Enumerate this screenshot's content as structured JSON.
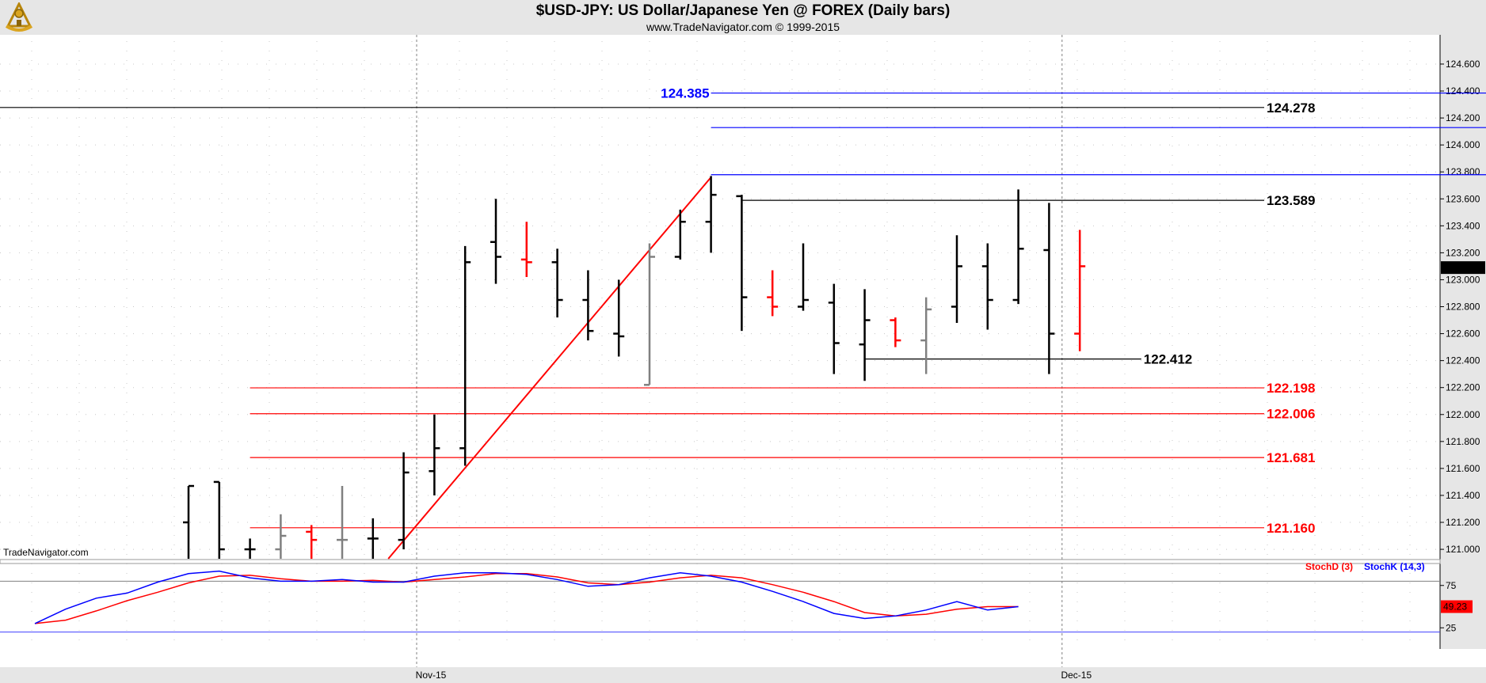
{
  "chart_data": {
    "type": "ohlc",
    "title": "$USD-JPY:  US Dollar/Japanese Yen @ FOREX  (Daily bars)",
    "subtitle": "www.TradeNavigator.com © 1999-2015",
    "watermark": "TradeNavigator.com",
    "price_axis": {
      "ylim": [
        120.93,
        124.77
      ],
      "ticks": [
        "124.600",
        "124.400",
        "124.200",
        "124.000",
        "123.800",
        "123.600",
        "123.400",
        "123.200",
        "123.000",
        "122.800",
        "122.600",
        "122.400",
        "122.200",
        "122.000",
        "121.800",
        "121.600",
        "121.400",
        "121.200",
        "121.000"
      ],
      "tick_values": [
        124.6,
        124.4,
        124.2,
        124.0,
        123.8,
        123.6,
        123.4,
        123.2,
        123.0,
        122.8,
        122.6,
        122.4,
        122.2,
        122.0,
        121.8,
        121.6,
        121.4,
        121.2,
        121.0
      ],
      "last_price_label": "123.090",
      "last_price_value": 123.09
    },
    "date_axis": {
      "labels": [
        "Nov-15",
        "Dec-15"
      ],
      "label_bar_index": [
        8,
        29
      ]
    },
    "bars": [
      {
        "o": 121.2,
        "h": 121.47,
        "l": 120.9,
        "c": 121.47,
        "color": "black"
      },
      {
        "o": 121.5,
        "h": 121.5,
        "l": 120.9,
        "c": 121.0,
        "color": "black"
      },
      {
        "o": 121.0,
        "h": 121.08,
        "l": 120.9,
        "c": 121.0,
        "color": "black"
      },
      {
        "o": 121.0,
        "h": 121.26,
        "l": 120.9,
        "c": 121.1,
        "color": "gray"
      },
      {
        "o": 121.13,
        "h": 121.18,
        "l": 120.9,
        "c": 121.07,
        "color": "red"
      },
      {
        "o": 121.07,
        "h": 121.47,
        "l": 120.9,
        "c": 121.07,
        "color": "gray"
      },
      {
        "o": 121.08,
        "h": 121.23,
        "l": 120.9,
        "c": 121.08,
        "color": "black"
      },
      {
        "o": 121.07,
        "h": 121.72,
        "l": 121.0,
        "c": 121.57,
        "color": "black"
      },
      {
        "o": 121.58,
        "h": 122.0,
        "l": 121.4,
        "c": 121.75,
        "color": "black"
      },
      {
        "o": 121.75,
        "h": 123.25,
        "l": 121.62,
        "c": 123.13,
        "color": "black"
      },
      {
        "o": 123.28,
        "h": 123.6,
        "l": 122.97,
        "c": 123.17,
        "color": "black"
      },
      {
        "o": 123.15,
        "h": 123.43,
        "l": 123.02,
        "c": 123.13,
        "color": "red"
      },
      {
        "o": 123.13,
        "h": 123.23,
        "l": 122.72,
        "c": 122.85,
        "color": "black"
      },
      {
        "o": 122.85,
        "h": 123.07,
        "l": 122.55,
        "c": 122.62,
        "color": "black"
      },
      {
        "o": 122.6,
        "h": 123.0,
        "l": 122.43,
        "c": 122.58,
        "color": "black"
      },
      {
        "o": 122.22,
        "h": 123.27,
        "l": 122.22,
        "c": 123.17,
        "color": "gray"
      },
      {
        "o": 123.17,
        "h": 123.52,
        "l": 123.15,
        "c": 123.43,
        "color": "black"
      },
      {
        "o": 123.43,
        "h": 123.77,
        "l": 123.2,
        "c": 123.63,
        "color": "black"
      },
      {
        "o": 123.62,
        "h": 123.63,
        "l": 122.62,
        "c": 122.87,
        "color": "black"
      },
      {
        "o": 122.87,
        "h": 123.07,
        "l": 122.73,
        "c": 122.8,
        "color": "red"
      },
      {
        "o": 122.8,
        "h": 123.27,
        "l": 122.77,
        "c": 122.85,
        "color": "black"
      },
      {
        "o": 122.83,
        "h": 122.97,
        "l": 122.3,
        "c": 122.53,
        "color": "black"
      },
      {
        "o": 122.52,
        "h": 122.93,
        "l": 122.25,
        "c": 122.7,
        "color": "black"
      },
      {
        "o": 122.7,
        "h": 122.72,
        "l": 122.5,
        "c": 122.55,
        "color": "red"
      },
      {
        "o": 122.55,
        "h": 122.87,
        "l": 122.3,
        "c": 122.78,
        "color": "gray"
      },
      {
        "o": 122.8,
        "h": 123.33,
        "l": 122.68,
        "c": 123.1,
        "color": "black"
      },
      {
        "o": 123.1,
        "h": 123.27,
        "l": 122.63,
        "c": 122.85,
        "color": "black"
      },
      {
        "o": 122.85,
        "h": 123.67,
        "l": 122.82,
        "c": 123.23,
        "color": "black"
      },
      {
        "o": 123.22,
        "h": 123.57,
        "l": 122.3,
        "c": 122.6,
        "color": "black"
      },
      {
        "o": 122.6,
        "h": 123.37,
        "l": 122.47,
        "c": 123.1,
        "color": "red"
      }
    ],
    "levels": [
      {
        "label": "124.385",
        "value": 124.385,
        "color": "#0000ff",
        "bar_start": 17,
        "bar_end": 46,
        "label_at": "left"
      },
      {
        "label": "124.278",
        "value": 124.278,
        "color": "#000000",
        "bar_start": -12,
        "bar_end": 35,
        "label_at": "right"
      },
      {
        "label": "124.129",
        "value": 124.129,
        "color": "#0000ff",
        "bar_start": 17,
        "bar_end": 46,
        "label_at": "right"
      },
      {
        "label": "123.779",
        "value": 123.779,
        "color": "#0000ff",
        "bar_start": 17,
        "bar_end": 46,
        "label_at": "right"
      },
      {
        "label": "123.589",
        "value": 123.589,
        "color": "#000000",
        "bar_start": 18,
        "bar_end": 35,
        "label_at": "right"
      },
      {
        "label": "122.412",
        "value": 122.412,
        "color": "#000000",
        "bar_start": 22,
        "bar_end": 31,
        "label_at": "right"
      },
      {
        "label": "122.198",
        "value": 122.198,
        "color": "#ff0000",
        "bar_start": 2,
        "bar_end": 35,
        "label_at": "right"
      },
      {
        "label": "122.006",
        "value": 122.006,
        "color": "#ff0000",
        "bar_start": 2,
        "bar_end": 35,
        "label_at": "right"
      },
      {
        "label": "121.681",
        "value": 121.681,
        "color": "#ff0000",
        "bar_start": 2,
        "bar_end": 35,
        "label_at": "right"
      },
      {
        "label": "121.160",
        "value": 121.16,
        "color": "#ff0000",
        "bar_start": 2,
        "bar_end": 35,
        "label_at": "right"
      }
    ],
    "trendline": {
      "from": {
        "bar": 6.5,
        "value": 120.93
      },
      "to": {
        "bar": 17,
        "value": 123.76
      },
      "color": "#ff0000"
    },
    "stochastic": {
      "ylim": [
        0,
        100
      ],
      "ticks": [
        "75",
        "25"
      ],
      "tick_values": [
        75,
        25
      ],
      "upper_band": 80,
      "lower_band": 20,
      "last_value_label": "49.23",
      "legend_d": "StochD (3)",
      "legend_k": "StochK (14,3)",
      "k_color": "#0000ff",
      "d_color": "#ff0000",
      "x_bar": [
        -5,
        -4,
        -3,
        -2,
        -1,
        0,
        1,
        2,
        3,
        4,
        5,
        6,
        7,
        8,
        9,
        10,
        11,
        12,
        13,
        14,
        15,
        16,
        17,
        18,
        19,
        20,
        21,
        22,
        23,
        24,
        25,
        26,
        27,
        28,
        29
      ],
      "k": [
        30,
        47,
        60,
        66,
        79,
        89,
        92,
        84,
        80,
        80,
        82,
        79,
        79,
        86,
        90,
        90,
        88,
        82,
        74,
        76,
        84,
        90,
        86,
        79,
        68,
        56,
        42,
        36,
        39,
        46,
        56,
        46,
        50,
        null,
        null
      ],
      "d": [
        30,
        34,
        45,
        57,
        67,
        78,
        86,
        87,
        83,
        80,
        80,
        81,
        79,
        82,
        85,
        89,
        89,
        85,
        78,
        76,
        79,
        84,
        87,
        84,
        76,
        67,
        56,
        43,
        39,
        41,
        47,
        50,
        50,
        null,
        null
      ]
    }
  }
}
